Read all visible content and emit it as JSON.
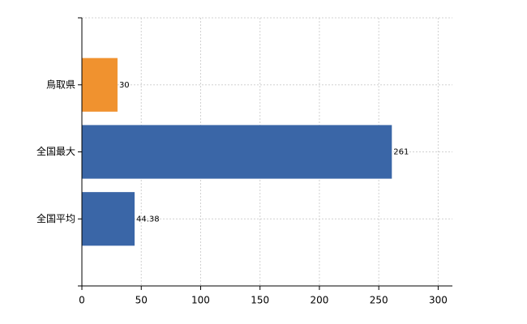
{
  "chart_data": {
    "type": "bar",
    "orientation": "horizontal",
    "categories": [
      "鳥取県",
      "全国最大",
      "全国平均"
    ],
    "values": [
      30,
      261,
      44.38
    ],
    "colors": [
      "#f0922f",
      "#3a66a7",
      "#3a66a7"
    ],
    "xlim": [
      0,
      312
    ],
    "xticks": [
      0,
      50,
      100,
      150,
      200,
      250,
      300
    ],
    "grid": true
  }
}
